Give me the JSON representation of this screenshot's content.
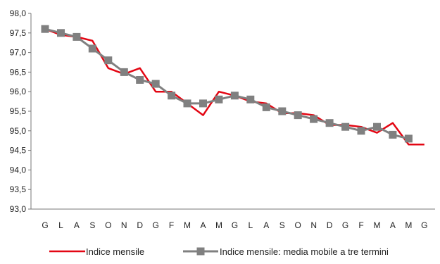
{
  "chart_data": {
    "type": "line",
    "title": "",
    "xlabel": "",
    "ylabel": "",
    "categories": [
      "G",
      "L",
      "A",
      "S",
      "O",
      "N",
      "D",
      "G",
      "F",
      "M",
      "A",
      "M",
      "G",
      "L",
      "A",
      "S",
      "O",
      "N",
      "D",
      "G",
      "F",
      "M",
      "A",
      "M",
      "G"
    ],
    "ylim": [
      93.0,
      98.0
    ],
    "yticks": [
      "93,0",
      "93,5",
      "94,0",
      "94,5",
      "95,0",
      "95,5",
      "96,0",
      "96,5",
      "97,0",
      "97,5",
      "98,0"
    ],
    "grid": false,
    "legend_position": "bottom",
    "series": [
      {
        "name": "Indice mensile",
        "color": "#e30613",
        "marker": "none",
        "values": [
          97.6,
          97.45,
          97.4,
          97.3,
          96.6,
          96.45,
          96.6,
          96.0,
          96.0,
          95.7,
          95.4,
          96.0,
          95.9,
          95.75,
          95.7,
          95.45,
          95.45,
          95.4,
          95.15,
          95.15,
          95.1,
          94.95,
          95.2,
          94.65,
          94.65
        ]
      },
      {
        "name": "Indice mensile: media mobile a tre termini",
        "color": "#808080",
        "marker": "square",
        "values": [
          97.6,
          97.5,
          97.4,
          97.1,
          96.8,
          96.5,
          96.3,
          96.2,
          95.9,
          95.7,
          95.7,
          95.8,
          95.9,
          95.8,
          95.6,
          95.5,
          95.4,
          95.3,
          95.2,
          95.1,
          95.0,
          95.1,
          94.9,
          94.8,
          null
        ]
      }
    ]
  }
}
